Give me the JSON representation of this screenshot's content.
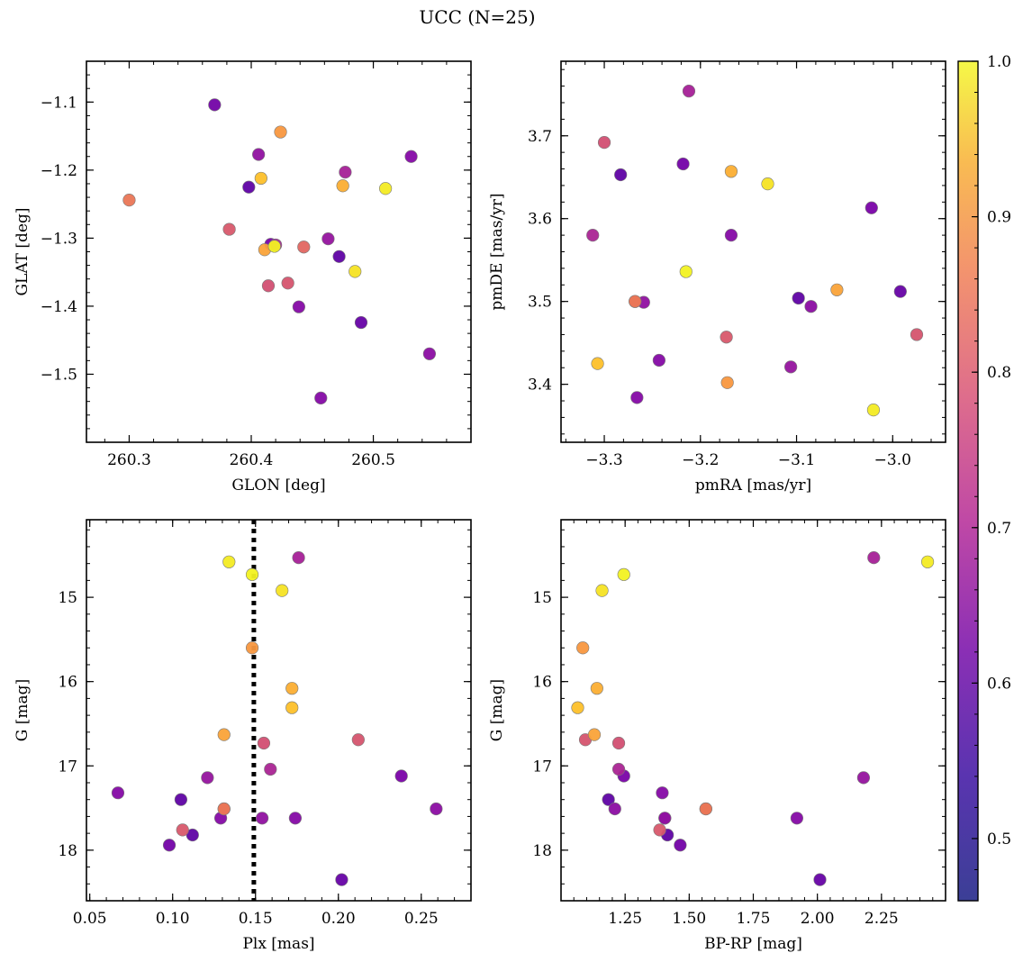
{
  "chart_data": {
    "type": "scatter",
    "title": "UCC (N=25)",
    "colorbar": {
      "cmap": "plasma",
      "range": [
        0.46,
        1.0
      ],
      "ticks": [
        0.5,
        0.6,
        0.7,
        0.8,
        0.9,
        1.0
      ],
      "tick_labels": [
        "0.5",
        "0.6",
        "0.7",
        "0.8",
        "0.9",
        "1.0"
      ]
    },
    "stars": [
      {
        "glon": 260.3,
        "glat": -1.244,
        "pmra": -3.268,
        "pmde": 3.5,
        "plx": 0.131,
        "g": 17.51,
        "bprp": 1.565,
        "p": 0.79
      },
      {
        "glon": 260.37,
        "glat": -1.104,
        "pmra": -3.218,
        "pmde": 3.666,
        "plx": 0.098,
        "g": 17.94,
        "bprp": 1.465,
        "p": 0.52
      },
      {
        "glon": 260.382,
        "glat": -1.287,
        "pmra": -3.173,
        "pmde": 3.457,
        "plx": 0.106,
        "g": 17.76,
        "bprp": 1.385,
        "p": 0.73
      },
      {
        "glon": 260.398,
        "glat": -1.225,
        "pmra": -3.283,
        "pmde": 3.653,
        "plx": 0.112,
        "g": 17.82,
        "bprp": 1.415,
        "p": 0.49
      },
      {
        "glon": 260.406,
        "glat": -1.177,
        "pmra": -3.259,
        "pmde": 3.499,
        "plx": 0.154,
        "g": 17.62,
        "bprp": 1.405,
        "p": 0.57
      },
      {
        "glon": 260.408,
        "glat": -1.212,
        "pmra": -3.307,
        "pmde": 3.425,
        "plx": 0.172,
        "g": 16.31,
        "bprp": 1.065,
        "p": 0.92
      },
      {
        "glon": 260.411,
        "glat": -1.317,
        "pmra": -3.058,
        "pmde": 3.514,
        "plx": 0.131,
        "g": 16.63,
        "bprp": 1.13,
        "p": 0.87
      },
      {
        "glon": 260.414,
        "glat": -1.37,
        "pmra": -3.3,
        "pmde": 3.692,
        "plx": 0.155,
        "g": 16.73,
        "bprp": 1.225,
        "p": 0.71
      },
      {
        "glon": 260.419,
        "glat": -1.312,
        "pmra": -3.215,
        "pmde": 3.536,
        "plx": 0.148,
        "g": 14.73,
        "bprp": 1.245,
        "p": 0.99
      },
      {
        "glon": 260.42,
        "glat": -1.31,
        "pmra": -3.312,
        "pmde": 3.58,
        "plx": 0.159,
        "g": 17.04,
        "bprp": 1.225,
        "p": 0.62
      },
      {
        "glon": 260.424,
        "glat": -1.144,
        "pmra": -3.172,
        "pmde": 3.402,
        "plx": 0.148,
        "g": 15.6,
        "bprp": 1.085,
        "p": 0.85
      },
      {
        "glon": 260.43,
        "glat": -1.366,
        "pmra": -2.975,
        "pmde": 3.46,
        "plx": 0.212,
        "g": 16.69,
        "bprp": 1.095,
        "p": 0.72
      },
      {
        "glon": 260.443,
        "glat": -1.313,
        "pmra": -3.268,
        "pmde": 3.5,
        "plx": 0.131,
        "g": 17.51,
        "bprp": 1.565,
        "p": 0.76
      },
      {
        "glon": 260.439,
        "glat": -1.401,
        "pmra": -3.266,
        "pmde": 3.384,
        "plx": 0.174,
        "g": 17.62,
        "bprp": 1.92,
        "p": 0.55
      },
      {
        "glon": 260.457,
        "glat": -1.535,
        "pmra": -3.243,
        "pmde": 3.429,
        "plx": 0.129,
        "g": 17.62,
        "bprp": 1.405,
        "p": 0.55
      },
      {
        "glon": 260.463,
        "glat": -1.301,
        "pmra": -3.106,
        "pmde": 3.421,
        "plx": 0.121,
        "g": 17.14,
        "bprp": 2.18,
        "p": 0.58
      },
      {
        "glon": 260.472,
        "glat": -1.327,
        "pmra": -3.098,
        "pmde": 3.504,
        "plx": 0.105,
        "g": 17.4,
        "bprp": 1.185,
        "p": 0.49
      },
      {
        "glon": 260.475,
        "glat": -1.223,
        "pmra": -3.168,
        "pmde": 3.657,
        "plx": 0.172,
        "g": 16.08,
        "bprp": 1.14,
        "p": 0.89
      },
      {
        "glon": 260.477,
        "glat": -1.203,
        "pmra": -3.212,
        "pmde": 3.754,
        "plx": 0.176,
        "g": 14.53,
        "bprp": 2.22,
        "p": 0.61
      },
      {
        "glon": 260.485,
        "glat": -1.349,
        "pmra": -3.13,
        "pmde": 3.642,
        "plx": 0.166,
        "g": 14.92,
        "bprp": 1.16,
        "p": 0.97
      },
      {
        "glon": 260.49,
        "glat": -1.424,
        "pmra": -2.992,
        "pmde": 3.512,
        "plx": 0.202,
        "g": 18.35,
        "bprp": 2.01,
        "p": 0.5
      },
      {
        "glon": 260.51,
        "glat": -1.227,
        "pmra": -3.02,
        "pmde": 3.369,
        "plx": 0.134,
        "g": 14.58,
        "bprp": 2.43,
        "p": 0.98
      },
      {
        "glon": 260.531,
        "glat": -1.18,
        "pmra": -3.168,
        "pmde": 3.58,
        "plx": 0.067,
        "g": 17.32,
        "bprp": 1.395,
        "p": 0.55
      },
      {
        "glon": 260.546,
        "glat": -1.47,
        "pmra": -3.085,
        "pmde": 3.494,
        "plx": 0.259,
        "g": 17.51,
        "bprp": 1.21,
        "p": 0.56
      },
      {
        "glon": 260.416,
        "glat": -1.309,
        "pmra": -3.022,
        "pmde": 3.613,
        "plx": 0.238,
        "g": 17.12,
        "bprp": 1.245,
        "p": 0.53
      }
    ],
    "panels": [
      {
        "id": "sky",
        "x": "glon",
        "y": "glat",
        "xlabel": "GLON [deg]",
        "ylabel": "GLAT [deg]",
        "xlim": [
          260.265,
          260.58
        ],
        "ylim": [
          -1.6,
          -1.04
        ],
        "yinvert": false,
        "xticks": [
          260.3,
          260.4,
          260.5
        ],
        "xtick_labels": [
          "260.3",
          "260.4",
          "260.5"
        ],
        "yticks": [
          -1.1,
          -1.2,
          -1.3,
          -1.4,
          -1.5
        ],
        "ytick_labels": [
          "−1.1",
          "−1.2",
          "−1.3",
          "−1.4",
          "−1.5"
        ]
      },
      {
        "id": "pm",
        "x": "pmra",
        "y": "pmde",
        "xlabel": "pmRA [mas/yr]",
        "ylabel": "pmDE [mas/yr]",
        "xlim": [
          -3.345,
          -2.945
        ],
        "ylim": [
          3.33,
          3.79
        ],
        "yinvert": false,
        "xticks": [
          -3.3,
          -3.2,
          -3.1,
          -3.0
        ],
        "xtick_labels": [
          "−3.3",
          "−3.2",
          "−3.1",
          "−3.0"
        ],
        "yticks": [
          3.4,
          3.5,
          3.6,
          3.7
        ],
        "ytick_labels": [
          "3.4",
          "3.5",
          "3.6",
          "3.7"
        ]
      },
      {
        "id": "plx",
        "x": "plx",
        "y": "g",
        "xlabel": "Plx [mas]",
        "ylabel": "G [mag]",
        "xlim": [
          0.048,
          0.28
        ],
        "ylim": [
          14.08,
          18.6
        ],
        "yinvert": true,
        "xticks": [
          0.05,
          0.1,
          0.15,
          0.2,
          0.25
        ],
        "xtick_labels": [
          "0.05",
          "0.10",
          "0.15",
          "0.20",
          "0.25"
        ],
        "yticks": [
          15,
          16,
          17,
          18
        ],
        "ytick_labels": [
          "15",
          "16",
          "17",
          "18"
        ],
        "vline": 0.149
      },
      {
        "id": "cmd",
        "x": "bprp",
        "y": "g",
        "xlabel": "BP-RP [mag]",
        "ylabel": "G [mag]",
        "xlim": [
          1.0,
          2.5
        ],
        "ylim": [
          14.08,
          18.6
        ],
        "yinvert": true,
        "xticks": [
          1.25,
          1.5,
          1.75,
          2.0,
          2.25
        ],
        "xtick_labels": [
          "1.25",
          "1.50",
          "1.75",
          "2.00",
          "2.25"
        ],
        "yticks": [
          15,
          16,
          17,
          18
        ],
        "ytick_labels": [
          "15",
          "16",
          "17",
          "18"
        ]
      }
    ]
  }
}
